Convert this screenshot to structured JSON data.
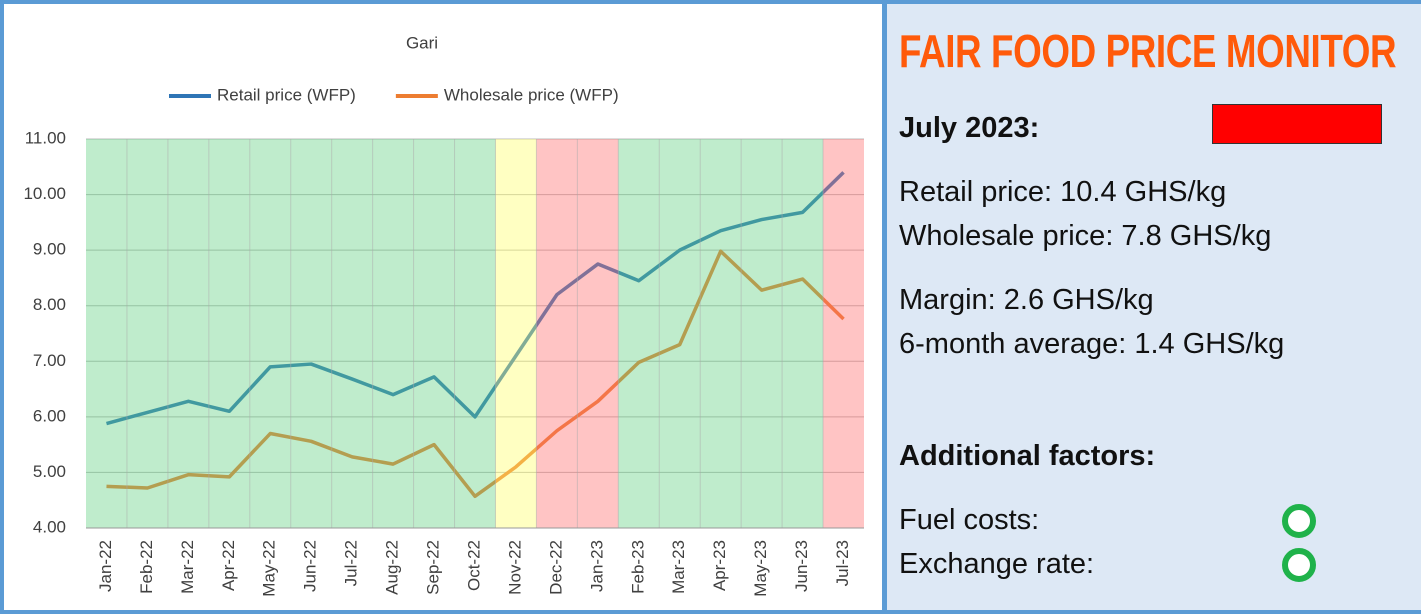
{
  "chart_data": {
    "type": "line",
    "title": "Gari",
    "categories": [
      "Jan-22",
      "Feb-22",
      "Mar-22",
      "Apr-22",
      "May-22",
      "Jun-22",
      "Jul-22",
      "Aug-22",
      "Sep-22",
      "Oct-22",
      "Nov-22",
      "Dec-22",
      "Jan-23",
      "Feb-23",
      "Mar-23",
      "Apr-23",
      "May-23",
      "Jun-23",
      "Jul-23"
    ],
    "series": [
      {
        "name": "Retail price (WFP)",
        "color": "#2e75b6",
        "values": [
          5.88,
          6.08,
          6.28,
          6.1,
          6.9,
          6.95,
          6.68,
          6.4,
          6.72,
          6.0,
          7.1,
          8.2,
          8.75,
          8.45,
          9.0,
          9.35,
          9.55,
          9.68,
          10.4
        ]
      },
      {
        "name": "Wholesale price (WFP)",
        "color": "#ed7d31",
        "values": [
          4.75,
          4.72,
          4.96,
          4.92,
          5.7,
          5.56,
          5.28,
          5.15,
          5.5,
          4.57,
          5.1,
          5.75,
          6.28,
          6.98,
          7.3,
          8.98,
          8.28,
          8.48,
          7.76
        ]
      }
    ],
    "band_colors": [
      "#5fcf7f",
      "#5fcf7f",
      "#5fcf7f",
      "#5fcf7f",
      "#5fcf7f",
      "#5fcf7f",
      "#5fcf7f",
      "#5fcf7f",
      "#5fcf7f",
      "#5fcf7f",
      "#ffff66",
      "#ff6b6b",
      "#ff6b6b",
      "#5fcf7f",
      "#5fcf7f",
      "#5fcf7f",
      "#5fcf7f",
      "#5fcf7f",
      "#ff6b6b"
    ],
    "ylim": [
      4,
      11
    ],
    "yticks": [
      {
        "value": 4,
        "label": "4.00"
      },
      {
        "value": 5,
        "label": "5.00"
      },
      {
        "value": 6,
        "label": "6.00"
      },
      {
        "value": 7,
        "label": "7.00"
      },
      {
        "value": 8,
        "label": "8.00"
      },
      {
        "value": 9,
        "label": "9.00"
      },
      {
        "value": 10,
        "label": "10.00"
      },
      {
        "value": 11,
        "label": "11.00"
      }
    ],
    "grid": true,
    "legend": "top"
  },
  "panel": {
    "title": "FAIR FOOD PRICE MONITOR",
    "date": "July 2023:",
    "status_color": "#ff0000",
    "prices": [
      "Retail price: 10.4 GHS/kg",
      "Wholesale price: 7.8 GHS/kg"
    ],
    "margins": [
      "Margin: 2.6 GHS/kg",
      "6-month average: 1.4 GHS/kg"
    ],
    "factors_heading": "Additional factors:",
    "factors": [
      {
        "label": "Fuel costs:",
        "color": "#1fb24a"
      },
      {
        "label": "Exchange rate:",
        "color": "#1fb24a"
      }
    ]
  }
}
